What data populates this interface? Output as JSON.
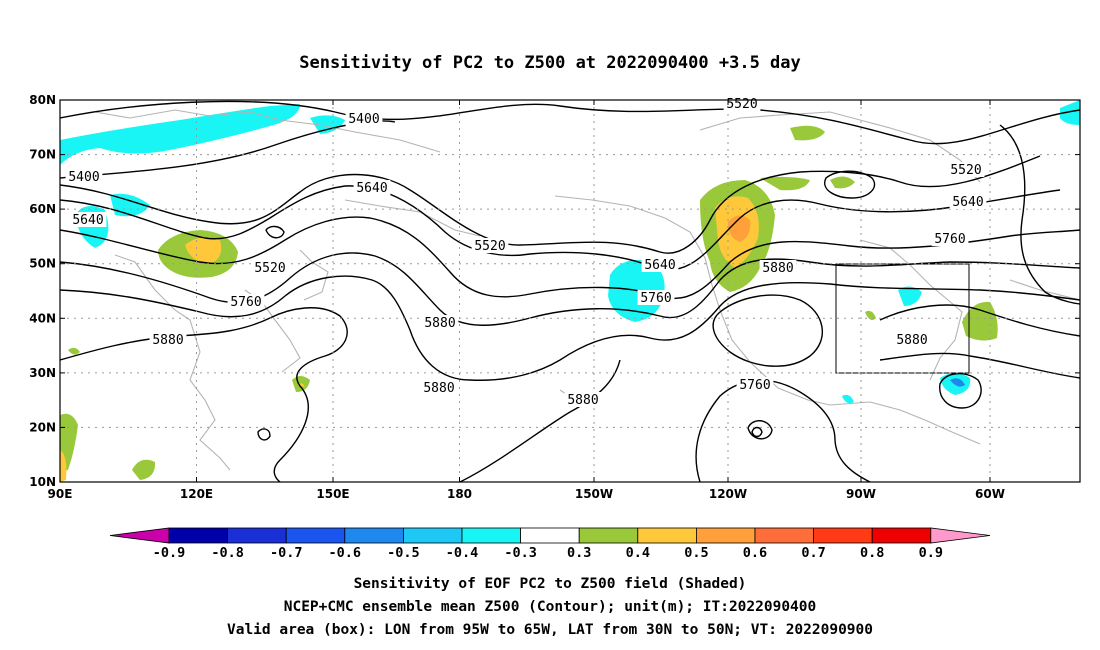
{
  "title": "Sensitivity of PC2 to Z500 at 2022090400 +3.5 day",
  "map": {
    "lat_labels": [
      "80N",
      "70N",
      "60N",
      "50N",
      "40N",
      "30N",
      "20N",
      "10N"
    ],
    "lon_labels": [
      "90E",
      "120E",
      "150E",
      "180",
      "150W",
      "120W",
      "90W",
      "60W"
    ],
    "valid_box": {
      "lon_from": "95W",
      "lon_to": "65W",
      "lat_from": "30N",
      "lat_to": "50N"
    }
  },
  "contours": {
    "levels": [
      5400,
      5520,
      5640,
      5760,
      5880
    ],
    "labels": [
      "5520",
      "5400",
      "5400",
      "5640",
      "5640",
      "5520",
      "5760",
      "5880",
      "5520",
      "5640",
      "5760",
      "5880",
      "5520",
      "5640",
      "5760",
      "5880",
      "5760",
      "5880",
      "5880",
      "5880",
      "5880"
    ]
  },
  "colorbar": {
    "labels": [
      "-0.9",
      "-0.8",
      "-0.7",
      "-0.6",
      "-0.5",
      "-0.4",
      "-0.3",
      "0.3",
      "0.4",
      "0.5",
      "0.6",
      "0.7",
      "0.8",
      "0.9"
    ],
    "colors": [
      "#cc00aa",
      "#0000aa",
      "#1a2fd6",
      "#1a55f0",
      "#1e88ee",
      "#1ec8f5",
      "#19f5f5",
      "#ffffff",
      "#99c93a",
      "#ffc83a",
      "#ffa03a",
      "#ff6e3a",
      "#ff3a14",
      "#ee0000",
      "#ff99cc"
    ]
  },
  "caption": [
    "Sensitivity of EOF PC2 to Z500 field (Shaded)",
    "NCEP+CMC ensemble mean Z500 (Contour); unit(m); IT:2022090400",
    "Valid area (box): LON from 95W to 65W, LAT from 30N to 50N; VT: 2022090900"
  ]
}
